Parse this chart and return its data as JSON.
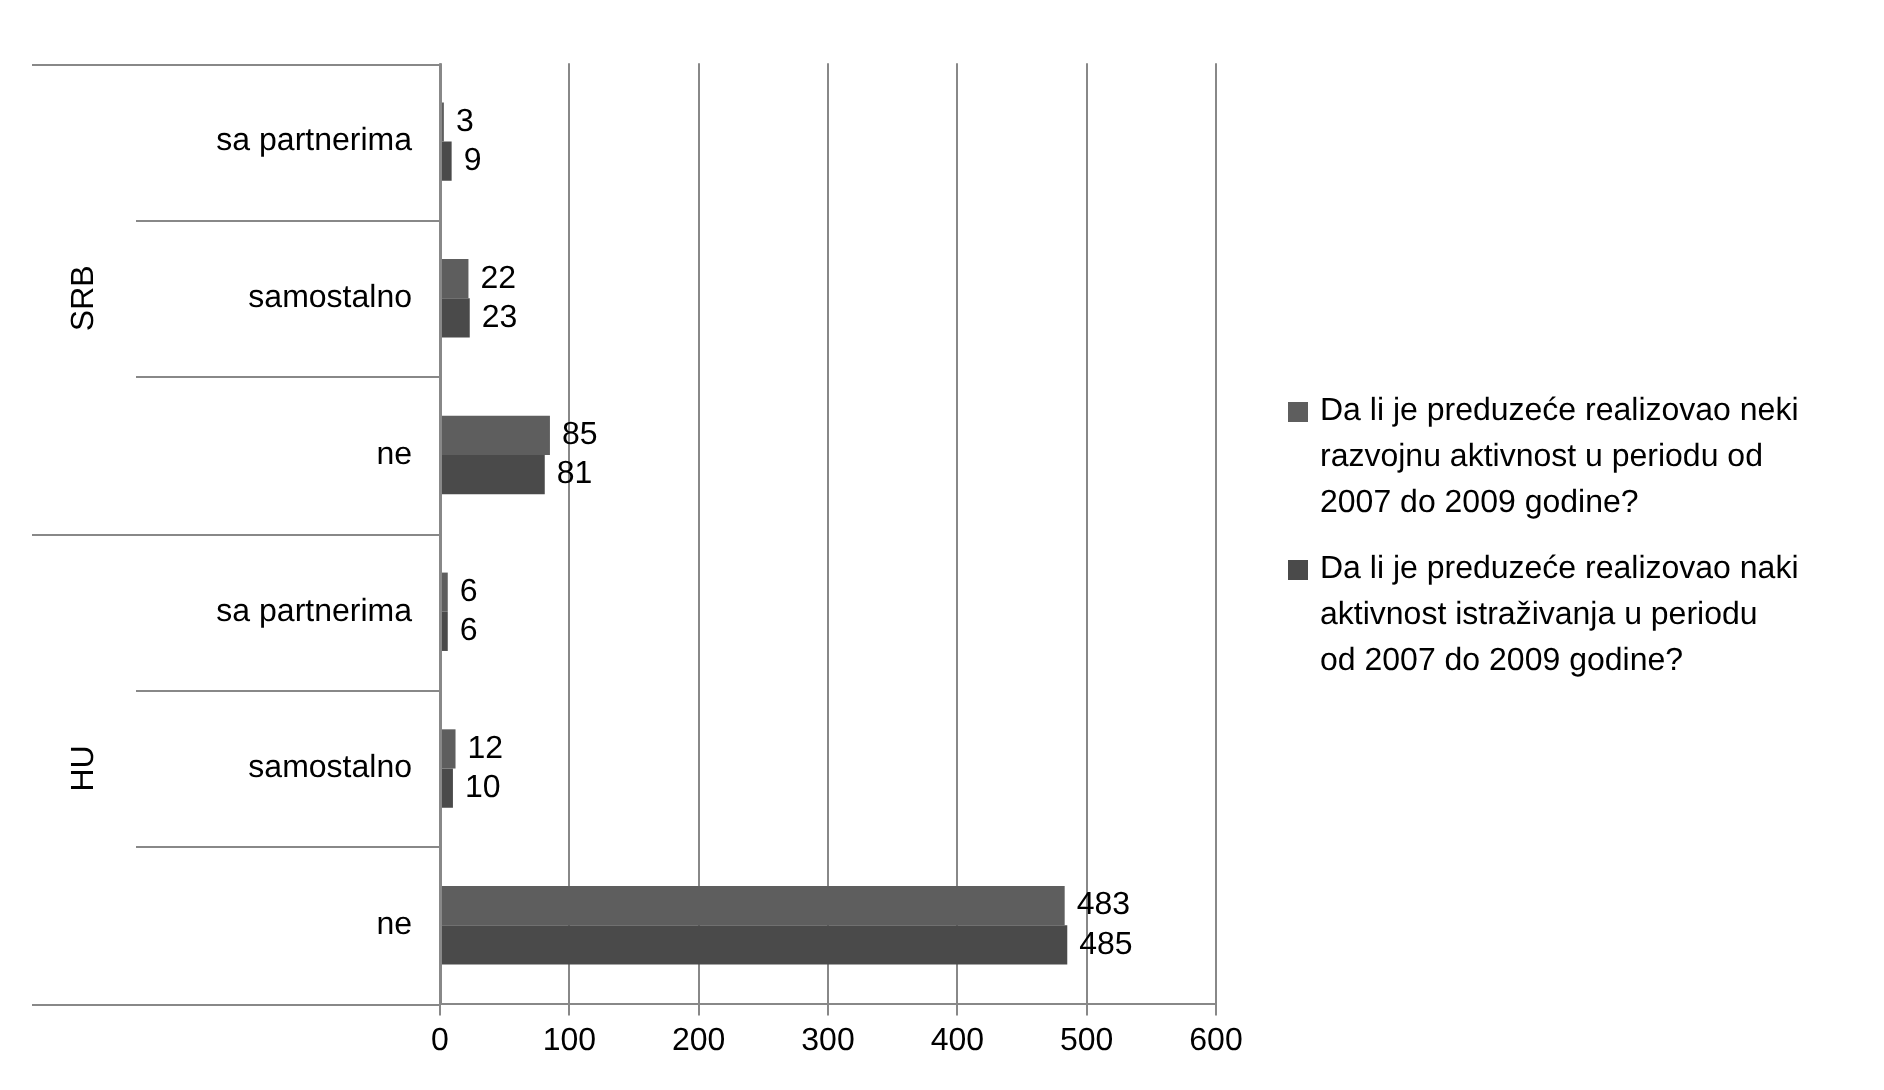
{
  "chart_data": {
    "type": "bar",
    "orientation": "horizontal",
    "categories": [
      "sa partnerima",
      "samostalno",
      "ne",
      "sa partnerima",
      "samostalno",
      "ne"
    ],
    "annotations": [
      "SRB",
      "HU"
    ],
    "series": [
      {
        "name": "Da li je preduzeće realizovao neki razvojnu aktivnost u periodu od 2007 do 2009 godine?",
        "color": "#5e5e5e",
        "values": [
          3,
          22,
          85,
          6,
          12,
          483
        ]
      },
      {
        "name": "Da li je preduzeće realizovao naki aktivnost istraživanja u periodu od 2007 do 2009 godine?",
        "color": "#4a4a4a",
        "values": [
          9,
          23,
          81,
          6,
          10,
          485
        ]
      }
    ],
    "xlim": [
      0,
      600
    ],
    "xticks": [
      0,
      100,
      200,
      300,
      400,
      500,
      600
    ],
    "grid": "x",
    "legend": "right",
    "data_labels": true
  }
}
